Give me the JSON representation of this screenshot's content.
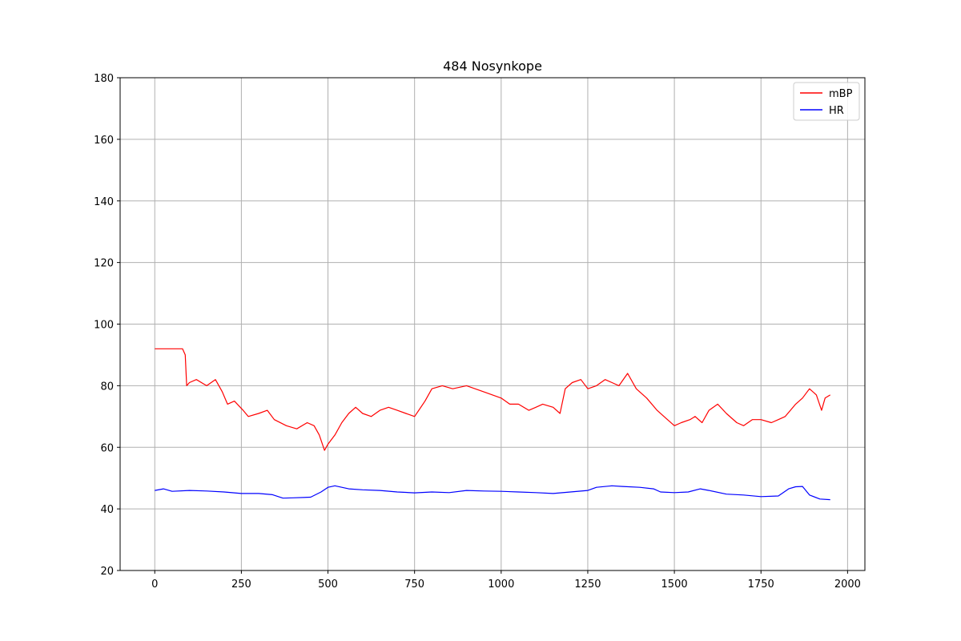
{
  "chart_data": {
    "type": "line",
    "title": "484 Nosynkope",
    "xlabel": "",
    "ylabel": "",
    "xlim": [
      -100,
      2050
    ],
    "ylim": [
      20,
      180
    ],
    "x_ticks": [
      0,
      250,
      500,
      750,
      1000,
      1250,
      1500,
      1750,
      2000
    ],
    "x_tick_labels": [
      "0",
      "250",
      "500",
      "750",
      "1000",
      "1250",
      "1500",
      "1750",
      "2000"
    ],
    "y_ticks": [
      20,
      40,
      60,
      80,
      100,
      120,
      140,
      160,
      180
    ],
    "y_tick_labels": [
      "20",
      "40",
      "60",
      "80",
      "100",
      "120",
      "140",
      "160",
      "180"
    ],
    "grid": true,
    "legend_position": "top-right",
    "series": [
      {
        "name": "mBP",
        "color": "#ff0000",
        "x": [
          0,
          80,
          88,
          92,
          100,
          120,
          150,
          175,
          195,
          210,
          230,
          255,
          270,
          300,
          325,
          345,
          380,
          410,
          440,
          460,
          475,
          490,
          500,
          520,
          540,
          560,
          580,
          600,
          625,
          650,
          675,
          700,
          725,
          750,
          780,
          800,
          830,
          860,
          900,
          950,
          1000,
          1025,
          1050,
          1080,
          1100,
          1120,
          1150,
          1170,
          1185,
          1205,
          1230,
          1250,
          1275,
          1300,
          1320,
          1340,
          1365,
          1390,
          1420,
          1450,
          1470,
          1500,
          1520,
          1545,
          1560,
          1580,
          1600,
          1625,
          1650,
          1680,
          1700,
          1725,
          1750,
          1780,
          1800,
          1820,
          1850,
          1870,
          1890,
          1910,
          1925,
          1935,
          1950
        ],
        "y": [
          92,
          92,
          90,
          80,
          81,
          82,
          80,
          82,
          78,
          74,
          75,
          72,
          70,
          71,
          72,
          69,
          67,
          66,
          68,
          67,
          64,
          59,
          61,
          64,
          68,
          71,
          73,
          71,
          70,
          72,
          73,
          72,
          71,
          70,
          75,
          79,
          80,
          79,
          80,
          78,
          76,
          74,
          74,
          72,
          73,
          74,
          73,
          71,
          79,
          81,
          82,
          79,
          80,
          82,
          81,
          80,
          84,
          79,
          76,
          72,
          70,
          67,
          68,
          69,
          70,
          68,
          72,
          74,
          71,
          68,
          67,
          69,
          69,
          68,
          69,
          70,
          74,
          76,
          79,
          77,
          72,
          76,
          77
        ]
      },
      {
        "name": "HR",
        "color": "#0000ff",
        "x": [
          0,
          25,
          50,
          100,
          150,
          200,
          250,
          300,
          340,
          370,
          400,
          450,
          480,
          500,
          520,
          560,
          600,
          650,
          700,
          750,
          800,
          850,
          900,
          950,
          1000,
          1050,
          1100,
          1150,
          1200,
          1250,
          1275,
          1320,
          1350,
          1400,
          1440,
          1460,
          1500,
          1540,
          1575,
          1600,
          1650,
          1700,
          1750,
          1800,
          1830,
          1850,
          1870,
          1890,
          1920,
          1950
        ],
        "y": [
          46,
          46.5,
          45.7,
          46,
          45.8,
          45.5,
          45,
          45,
          44.6,
          43.5,
          43.6,
          43.8,
          45.5,
          47,
          47.5,
          46.5,
          46.2,
          46,
          45.5,
          45.2,
          45.5,
          45.3,
          46,
          45.8,
          45.7,
          45.5,
          45.3,
          45,
          45.5,
          46,
          47,
          47.5,
          47.3,
          47,
          46.5,
          45.5,
          45.3,
          45.5,
          46.5,
          46,
          44.8,
          44.5,
          44,
          44.2,
          46.5,
          47.2,
          47.3,
          44.5,
          43.2,
          43
        ]
      }
    ]
  }
}
